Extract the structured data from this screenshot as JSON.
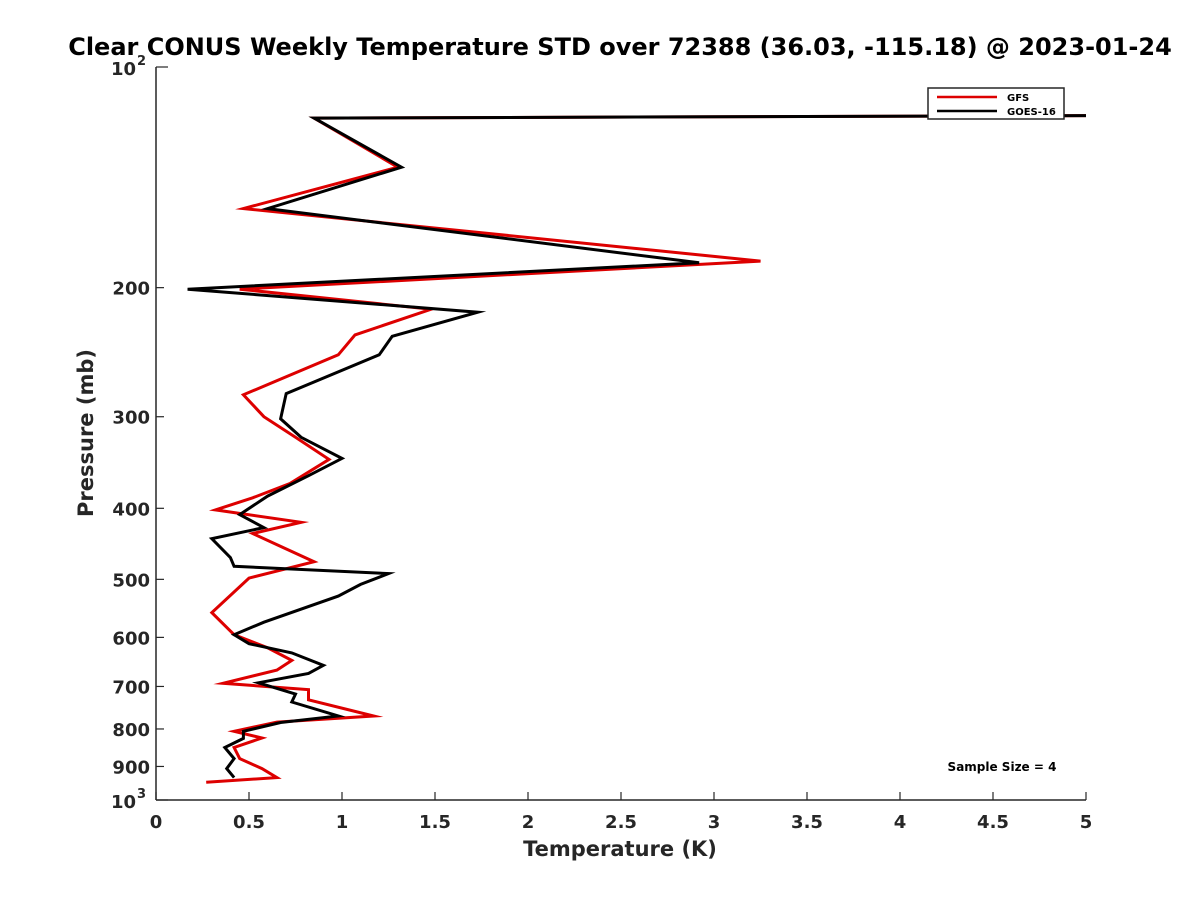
{
  "chart_data": {
    "type": "line",
    "title": "Clear CONUS Weekly Temperature STD over 72388 (36.03, -115.18) @ 2023-01-24",
    "xlabel": "Temperature (K)",
    "ylabel": "Pressure (mb)",
    "xlim": [
      0,
      5
    ],
    "ylim": [
      100,
      1000
    ],
    "y_scale": "log",
    "y_reversed": true,
    "x_ticks": [
      {
        "value": 0,
        "label": "0"
      },
      {
        "value": 0.5,
        "label": "0.5"
      },
      {
        "value": 1,
        "label": "1"
      },
      {
        "value": 1.5,
        "label": "1.5"
      },
      {
        "value": 2,
        "label": "2"
      },
      {
        "value": 2.5,
        "label": "2.5"
      },
      {
        "value": 3,
        "label": "3"
      },
      {
        "value": 3.5,
        "label": "3.5"
      },
      {
        "value": 4,
        "label": "4"
      },
      {
        "value": 4.5,
        "label": "4.5"
      },
      {
        "value": 5,
        "label": "5"
      }
    ],
    "y_ticks": [
      {
        "value": 200,
        "label": "200"
      },
      {
        "value": 300,
        "label": "300"
      },
      {
        "value": 400,
        "label": "400"
      },
      {
        "value": 500,
        "label": "500"
      },
      {
        "value": 600,
        "label": "600"
      },
      {
        "value": 700,
        "label": "700"
      },
      {
        "value": 800,
        "label": "800"
      },
      {
        "value": 900,
        "label": "900"
      }
    ],
    "y_power_ticks": [
      {
        "value": 100,
        "base": "10",
        "exp": "2"
      },
      {
        "value": 1000,
        "base": "10",
        "exp": "3"
      }
    ],
    "grid": false,
    "legend": "top-right",
    "series": [
      {
        "name": "GFS",
        "color": "#dd0000",
        "points": [
          [
            5.0,
            116.5
          ],
          [
            0.85,
            117.4
          ],
          [
            1.3,
            137
          ],
          [
            0.47,
            156
          ],
          [
            3.25,
            184
          ],
          [
            0.45,
            201
          ],
          [
            1.48,
            214
          ],
          [
            1.07,
            232
          ],
          [
            0.98,
            247
          ],
          [
            0.47,
            280
          ],
          [
            0.58,
            300
          ],
          [
            0.75,
            320
          ],
          [
            0.93,
            343
          ],
          [
            0.72,
            370
          ],
          [
            0.52,
            387
          ],
          [
            0.32,
            402
          ],
          [
            0.78,
            418
          ],
          [
            0.52,
            433
          ],
          [
            0.68,
            452
          ],
          [
            0.85,
            473
          ],
          [
            0.5,
            498
          ],
          [
            0.3,
            555
          ],
          [
            0.42,
            595
          ],
          [
            0.6,
            620
          ],
          [
            0.73,
            645
          ],
          [
            0.65,
            665
          ],
          [
            0.36,
            693
          ],
          [
            0.82,
            707
          ],
          [
            0.82,
            730
          ],
          [
            1.17,
            768
          ],
          [
            0.65,
            783
          ],
          [
            0.42,
            806
          ],
          [
            0.57,
            823
          ],
          [
            0.42,
            848
          ],
          [
            0.45,
            878
          ],
          [
            0.57,
            906
          ],
          [
            0.65,
            932
          ],
          [
            0.27,
            946
          ]
        ]
      },
      {
        "name": "GOES-16",
        "color": "#000000",
        "points": [
          [
            5.0,
            116.5
          ],
          [
            0.85,
            117.4
          ],
          [
            1.32,
            137
          ],
          [
            0.6,
            156
          ],
          [
            2.92,
            185
          ],
          [
            0.17,
            201
          ],
          [
            1.73,
            216
          ],
          [
            1.27,
            233
          ],
          [
            1.2,
            247
          ],
          [
            0.7,
            279
          ],
          [
            0.67,
            302
          ],
          [
            0.78,
            320
          ],
          [
            1.0,
            342
          ],
          [
            0.82,
            361
          ],
          [
            0.6,
            385
          ],
          [
            0.45,
            408
          ],
          [
            0.58,
            425
          ],
          [
            0.3,
            440
          ],
          [
            0.4,
            467
          ],
          [
            0.42,
            480
          ],
          [
            1.25,
            491
          ],
          [
            1.1,
            508
          ],
          [
            0.98,
            527
          ],
          [
            0.58,
            572
          ],
          [
            0.42,
            595
          ],
          [
            0.5,
            612
          ],
          [
            0.73,
            630
          ],
          [
            0.9,
            655
          ],
          [
            0.82,
            672
          ],
          [
            0.55,
            692
          ],
          [
            0.75,
            717
          ],
          [
            0.73,
            735
          ],
          [
            0.98,
            768
          ],
          [
            0.67,
            784
          ],
          [
            0.47,
            806
          ],
          [
            0.47,
            824
          ],
          [
            0.37,
            848
          ],
          [
            0.42,
            878
          ],
          [
            0.38,
            906
          ],
          [
            0.42,
            932
          ]
        ]
      }
    ],
    "annotation": "Sample Size = 4"
  }
}
